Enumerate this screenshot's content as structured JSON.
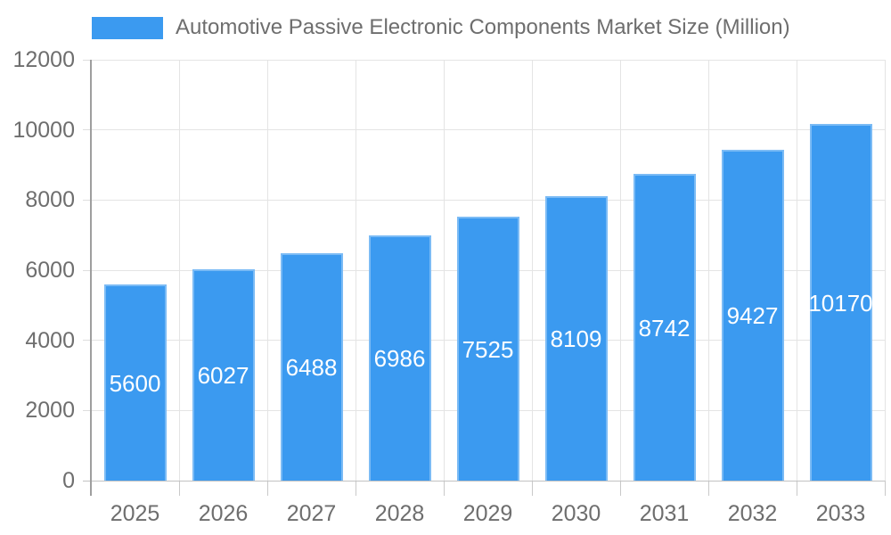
{
  "chart_data": {
    "type": "bar",
    "legend": "Automotive Passive Electronic Components Market Size (Million)",
    "legend_position": "top",
    "categories": [
      "2025",
      "2026",
      "2027",
      "2028",
      "2029",
      "2030",
      "2031",
      "2032",
      "2033"
    ],
    "values": [
      5600,
      6027,
      6488,
      6986,
      7525,
      8109,
      8742,
      9427,
      10170
    ],
    "xlabel": "",
    "ylabel": "",
    "ylim": [
      0,
      12000
    ],
    "yticks": [
      0,
      2000,
      4000,
      6000,
      8000,
      10000,
      12000
    ],
    "grid": true,
    "value_labels_position": "inside-center",
    "colors": {
      "bar": "#3b9af0",
      "bar_value_label": "#ffffff",
      "axis_text": "#6e6e6e",
      "grid_line": "#e4e4e4",
      "x_axis_line": "#c2c2c2",
      "y_axis_line": "#9e9e9e",
      "x_tick": "#c9c9c9",
      "y_tick": "#dedede"
    }
  }
}
